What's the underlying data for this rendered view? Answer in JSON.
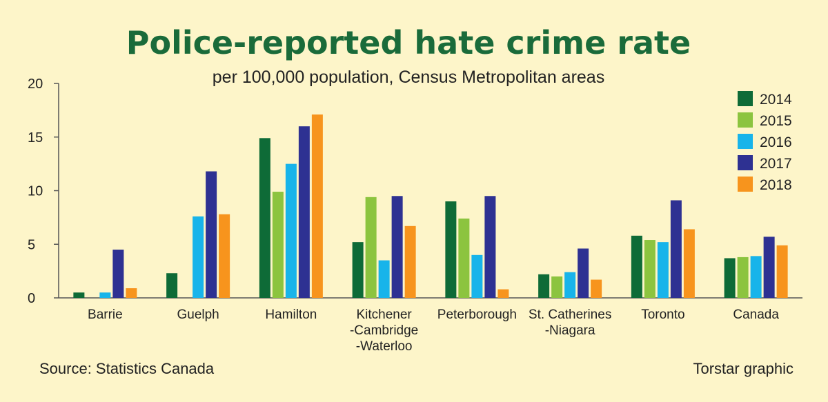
{
  "footer": {
    "source": "Source: Statistics Canada",
    "credit": "Torstar graphic"
  },
  "chart_data": {
    "type": "bar",
    "title": "Police-reported hate crime rate",
    "subtitle": "per 100,000 population, Census Metropolitan areas",
    "categories": [
      [
        "Barrie"
      ],
      [
        "Guelph"
      ],
      [
        "Hamilton"
      ],
      [
        "Kitchener",
        "-Cambridge",
        "-Waterloo"
      ],
      [
        "Peterborough"
      ],
      [
        "St. Catherines",
        "-Niagara"
      ],
      [
        "Toronto"
      ],
      [
        "Canada"
      ]
    ],
    "series": [
      {
        "name": "2014",
        "color": "#0e6b37",
        "values": [
          0.5,
          2.3,
          14.9,
          5.2,
          9.0,
          2.2,
          5.8,
          3.7
        ]
      },
      {
        "name": "2015",
        "color": "#8cc43f",
        "values": [
          0.0,
          0.0,
          9.9,
          9.4,
          7.4,
          2.0,
          5.4,
          3.8
        ]
      },
      {
        "name": "2016",
        "color": "#18b4ea",
        "values": [
          0.5,
          7.6,
          12.5,
          3.5,
          4.0,
          2.4,
          5.2,
          3.9
        ]
      },
      {
        "name": "2017",
        "color": "#2e3192",
        "values": [
          4.5,
          11.8,
          16.0,
          9.5,
          9.5,
          4.6,
          9.1,
          5.7
        ]
      },
      {
        "name": "2018",
        "color": "#f7941d",
        "values": [
          0.9,
          7.8,
          17.1,
          6.7,
          0.8,
          1.7,
          6.4,
          4.9
        ]
      }
    ],
    "ylim": [
      0,
      20
    ],
    "yticks": [
      0,
      5,
      10,
      15,
      20
    ],
    "xlabel": "",
    "ylabel": "",
    "grid": false,
    "legend": "top-right"
  }
}
